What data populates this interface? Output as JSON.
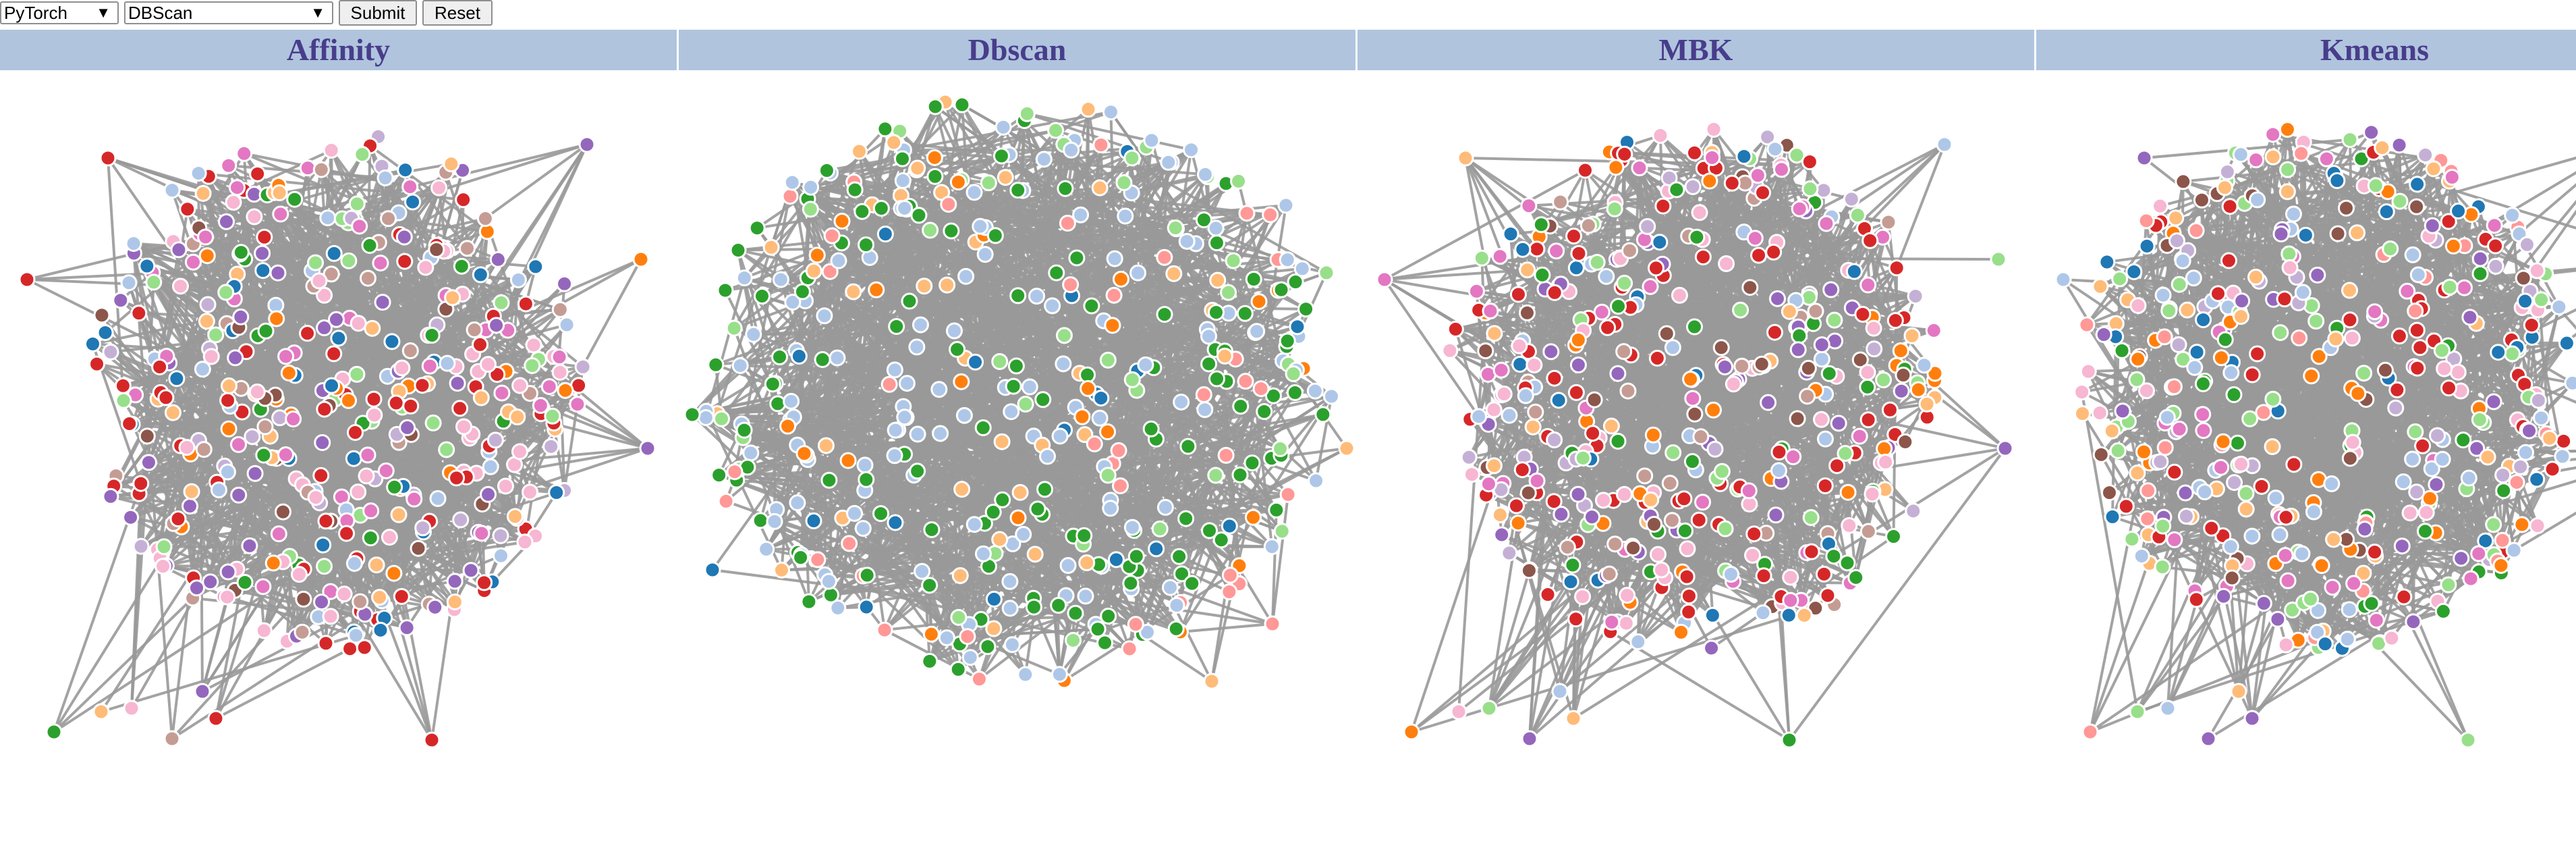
{
  "toolbar": {
    "framework": "PyTorch",
    "algorithm": "DBScan",
    "dropdown_arrow": "▼",
    "submit_label": "Submit",
    "reset_label": "Reset"
  },
  "panels": [
    {
      "title": "Affinity",
      "palette": "mixed"
    },
    {
      "title": "Dbscan",
      "palette": "greenblue"
    },
    {
      "title": "MBK",
      "palette": "mixed"
    },
    {
      "title": "Kmeans",
      "palette": "mixed2"
    }
  ],
  "colors": {
    "header_bg": "#b0c4de",
    "header_text": "#483d8b",
    "edge": "#999999",
    "node_stroke": "#ffffff",
    "categorical": [
      "#1f77b4",
      "#aec7e8",
      "#ff7f0e",
      "#ffbb78",
      "#2ca02c",
      "#98df8a",
      "#d62728",
      "#ff9896",
      "#9467bd",
      "#c5b0d5",
      "#8c564b",
      "#c49c94",
      "#e377c2",
      "#f7b6d2",
      "#7f7f7f",
      "#c7c7c7"
    ]
  }
}
